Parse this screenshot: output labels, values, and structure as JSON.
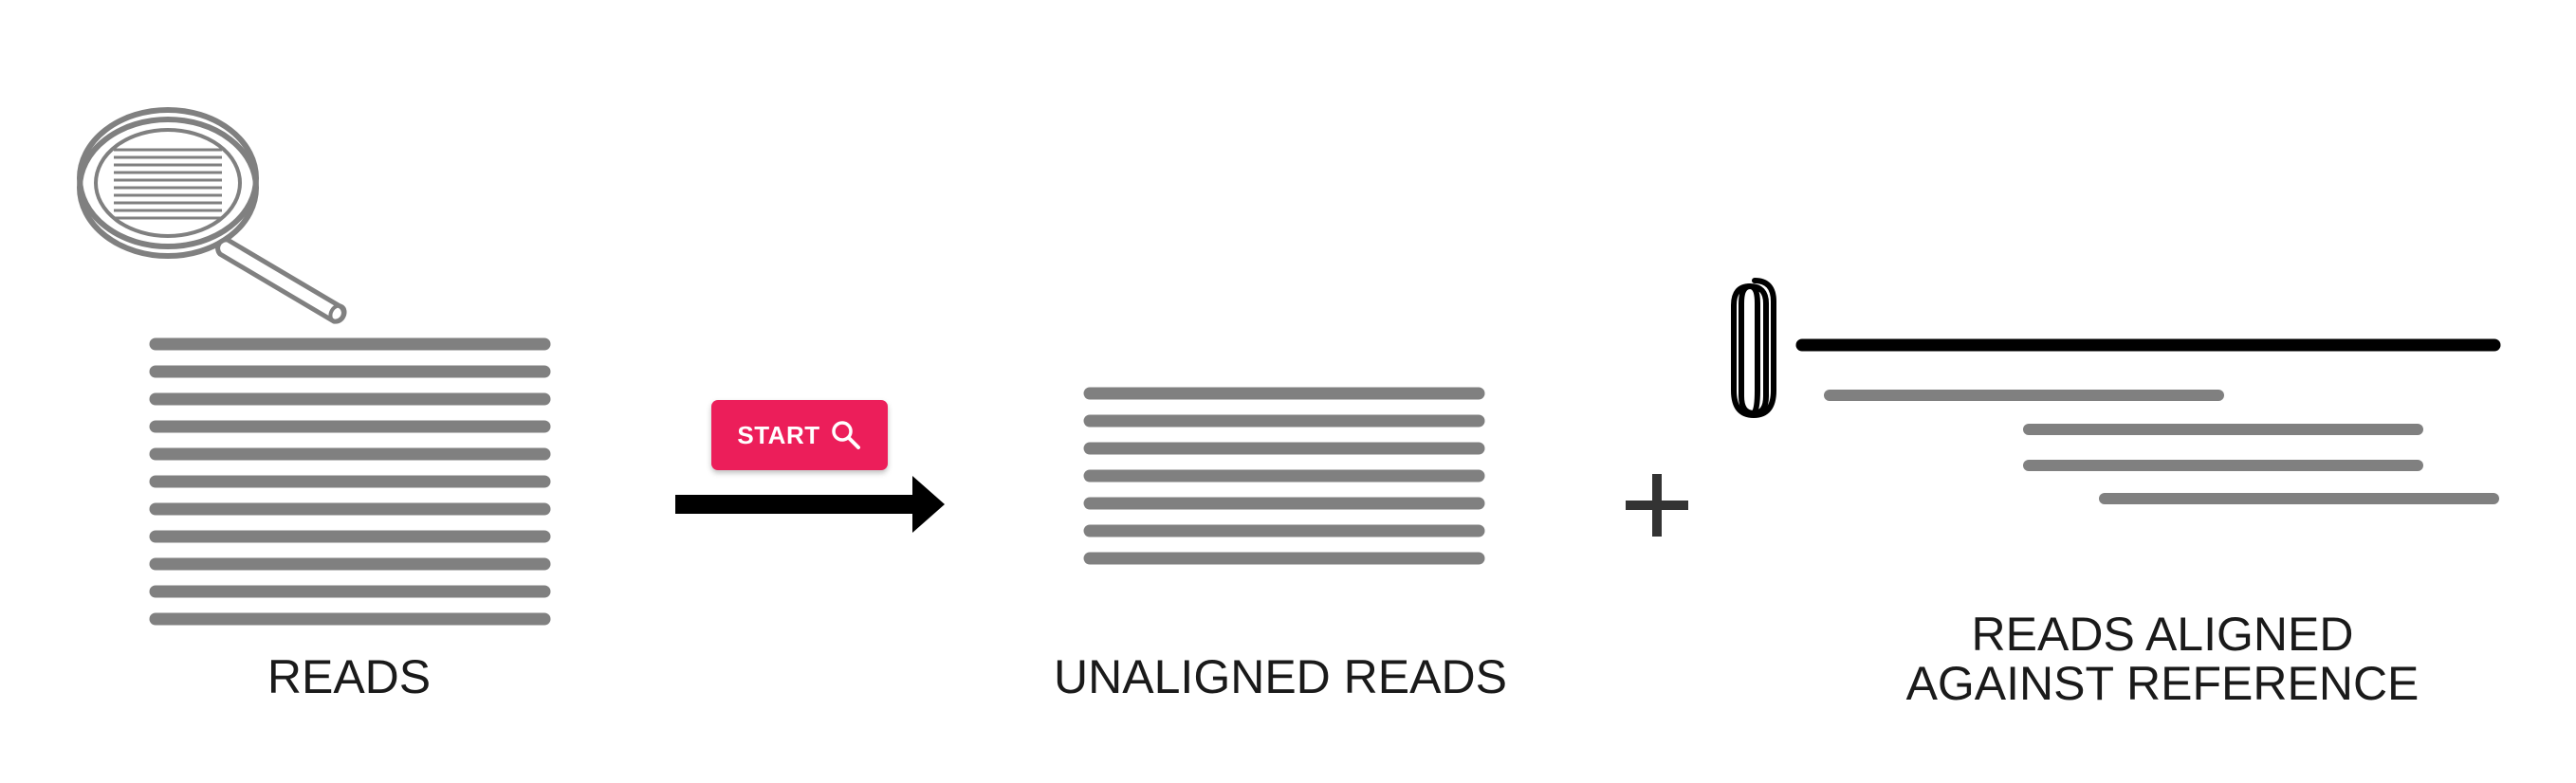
{
  "diagram": {
    "reads_label": "READS",
    "start_button": {
      "label": "START",
      "icon": "search-icon"
    },
    "unaligned_label": "UNALIGNED READS",
    "aligned_label_line1": "READS ALIGNED",
    "aligned_label_line2": "AGAINST REFERENCE",
    "colors": {
      "read_gray": "#808080",
      "reference_black": "#000000",
      "accent_pink": "#ec1e5a",
      "text": "#1a1a1a"
    },
    "icons": [
      "magnifier-icon",
      "arrow-icon",
      "plus-icon",
      "paperclip-icon"
    ]
  }
}
